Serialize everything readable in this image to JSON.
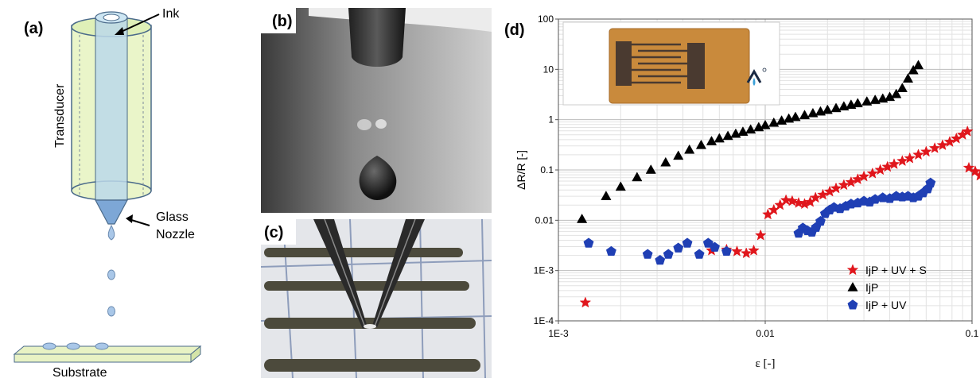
{
  "panel_a": {
    "label": "(a)",
    "ink": "Ink",
    "transducer": "Transducer",
    "nozzle_line1": "Glass",
    "nozzle_line2": "Nozzle",
    "substrate": "Substrate"
  },
  "panel_b": {
    "label": "(b)"
  },
  "panel_c": {
    "label": "(c)"
  },
  "panel_d": {
    "label": "(d)",
    "chart_data": {
      "type": "scatter",
      "xlabel": "ε [-]",
      "ylabel": "ΔR/R [-]",
      "xscale": "log",
      "yscale": "log",
      "xlim": [
        0.001,
        0.1
      ],
      "ylim": [
        0.0001,
        100
      ],
      "xticks": [
        "1E-3",
        "0.01",
        "0.1"
      ],
      "yticks": [
        "1E-4",
        "1E-3",
        "0.01",
        "0.1",
        "1",
        "10",
        "100"
      ],
      "grid": true,
      "legend_position": "bottom-right",
      "series": [
        {
          "name": "IjP + UV + S",
          "marker": "star",
          "color": "#e0161c",
          "x": [
            0.00135,
            0.0055,
            0.0065,
            0.0073,
            0.0081,
            0.0088,
            0.0095,
            0.0103,
            0.011,
            0.0118,
            0.0126,
            0.0135,
            0.0145,
            0.0155,
            0.0165,
            0.0175,
            0.019,
            0.0205,
            0.022,
            0.024,
            0.026,
            0.028,
            0.03,
            0.033,
            0.036,
            0.039,
            0.042,
            0.046,
            0.05,
            0.055,
            0.06,
            0.066,
            0.072,
            0.078,
            0.084,
            0.09,
            0.095
          ],
          "y": [
            0.00023,
            0.0025,
            0.0026,
            0.0024,
            0.0022,
            0.0025,
            0.005,
            0.013,
            0.016,
            0.02,
            0.025,
            0.024,
            0.022,
            0.021,
            0.023,
            0.028,
            0.032,
            0.037,
            0.043,
            0.05,
            0.057,
            0.065,
            0.074,
            0.085,
            0.1,
            0.115,
            0.13,
            0.15,
            0.17,
            0.2,
            0.23,
            0.27,
            0.31,
            0.36,
            0.42,
            0.5,
            0.58
          ]
        },
        {
          "name": "IjP",
          "marker": "triangle",
          "color": "#000000",
          "x": [
            0.0013,
            0.0017,
            0.002,
            0.0024,
            0.0028,
            0.0033,
            0.0038,
            0.0043,
            0.0049,
            0.0055,
            0.006,
            0.0066,
            0.0072,
            0.0078,
            0.0085,
            0.0093,
            0.01,
            0.011,
            0.012,
            0.013,
            0.014,
            0.0155,
            0.017,
            0.0185,
            0.02,
            0.022,
            0.024,
            0.026,
            0.028,
            0.031,
            0.034,
            0.037,
            0.04,
            0.043,
            0.046,
            0.049,
            0.052,
            0.055
          ],
          "y": [
            0.0105,
            0.03,
            0.046,
            0.071,
            0.1,
            0.14,
            0.19,
            0.25,
            0.31,
            0.37,
            0.42,
            0.47,
            0.52,
            0.57,
            0.63,
            0.7,
            0.77,
            0.86,
            0.95,
            1.04,
            1.12,
            1.22,
            1.33,
            1.44,
            1.55,
            1.68,
            1.82,
            1.96,
            2.1,
            2.28,
            2.45,
            2.6,
            2.8,
            3.2,
            4.2,
            6.5,
            9.5,
            12
          ]
        },
        {
          "name": "IjP + UV",
          "marker": "pentagon",
          "color": "#1f3fb4",
          "x": [
            0.0014,
            0.0018,
            0.0027,
            0.0031,
            0.0034,
            0.0038,
            0.0042,
            0.0048,
            0.0053,
            0.0057,
            0.0065,
            0.0145,
            0.0152,
            0.016,
            0.0168,
            0.0176,
            0.0185,
            0.0195,
            0.0205,
            0.0215,
            0.023,
            0.0245,
            0.026,
            0.028,
            0.03,
            0.032,
            0.034,
            0.037,
            0.04,
            0.043,
            0.046,
            0.049,
            0.052,
            0.055,
            0.058,
            0.061,
            0.063
          ],
          "y": [
            0.0035,
            0.0024,
            0.0021,
            0.0016,
            0.0021,
            0.0028,
            0.0035,
            0.0021,
            0.0035,
            0.0029,
            0.0024,
            0.0055,
            0.007,
            0.0062,
            0.0058,
            0.0072,
            0.0095,
            0.0135,
            0.016,
            0.018,
            0.017,
            0.019,
            0.021,
            0.022,
            0.024,
            0.023,
            0.026,
            0.028,
            0.027,
            0.03,
            0.029,
            0.03,
            0.028,
            0.03,
            0.035,
            0.042,
            0.055
          ]
        }
      ],
      "extra_red_points": {
        "x": [
          0.1
        ],
        "y": [
          0.11
        ]
      }
    }
  }
}
